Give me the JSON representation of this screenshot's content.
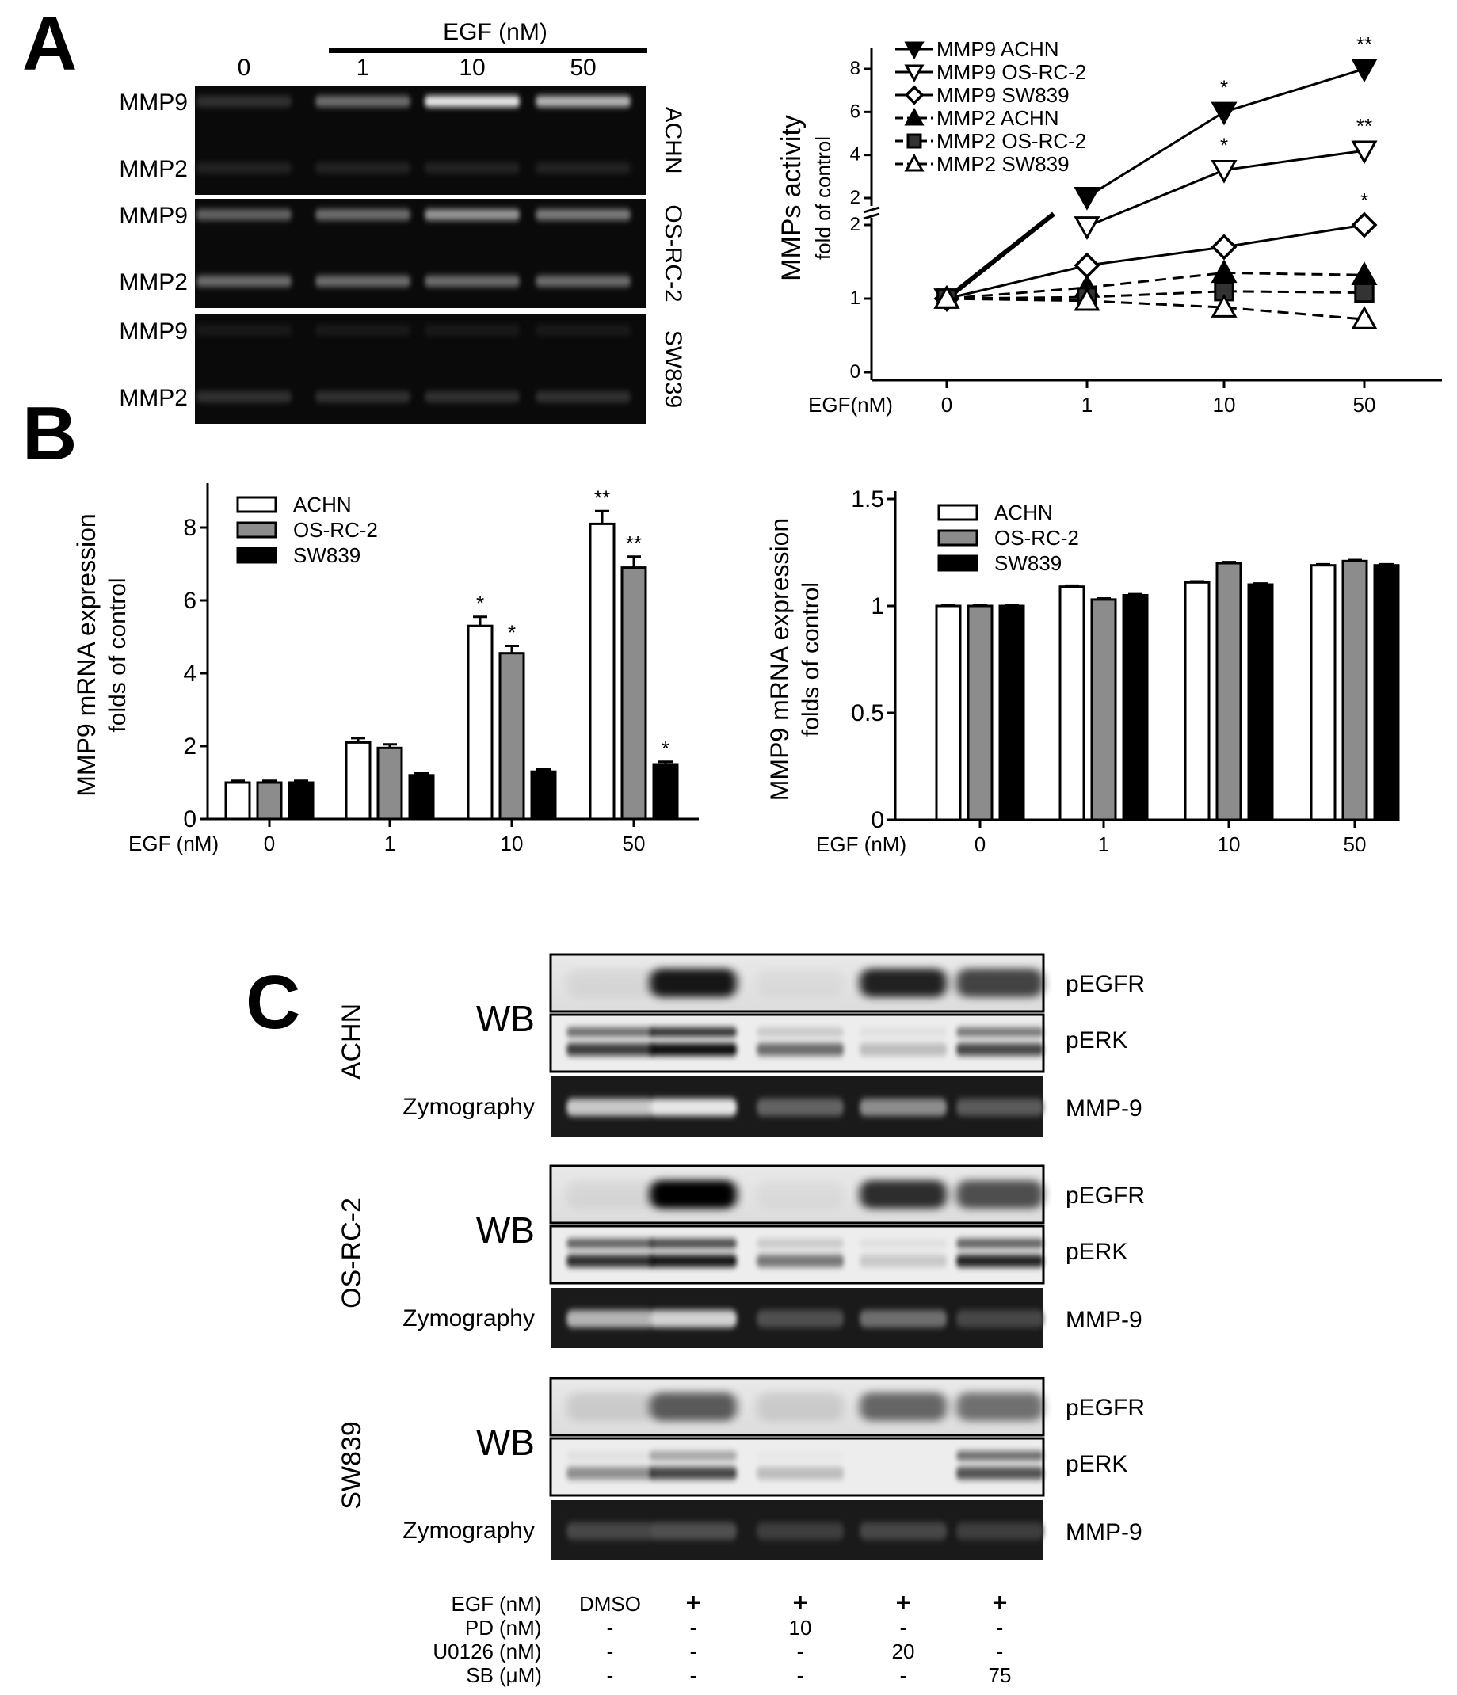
{
  "panels": {
    "A": "A",
    "B": "B",
    "C": "C"
  },
  "panelA": {
    "gel": {
      "header_label": "EGF (nM)",
      "lanes": [
        "0",
        "1",
        "10",
        "50"
      ],
      "blocks": [
        {
          "cell": "ACHN",
          "bands": [
            "MMP9",
            "MMP2"
          ]
        },
        {
          "cell": "OS-RC-2",
          "bands": [
            "MMP9",
            "MMP2"
          ]
        },
        {
          "cell": "SW839",
          "bands": [
            "MMP9",
            "MMP2"
          ]
        }
      ],
      "band_intensity": {
        "ACHN": {
          "MMP9": [
            0.25,
            0.55,
            0.95,
            0.8
          ],
          "MMP2": [
            0.15,
            0.15,
            0.15,
            0.15
          ]
        },
        "OS-RC-2": {
          "MMP9": [
            0.5,
            0.55,
            0.7,
            0.6
          ],
          "MMP2": [
            0.55,
            0.55,
            0.55,
            0.55
          ]
        },
        "SW839": {
          "MMP9": [
            0.08,
            0.08,
            0.08,
            0.08
          ],
          "MMP2": [
            0.25,
            0.25,
            0.25,
            0.25
          ]
        }
      }
    }
  },
  "chart_data": [
    {
      "type": "line",
      "ylabel": "MMPs activity",
      "ylabel2": "fold of control",
      "xlabel": "EGF(nM)",
      "x": [
        "0",
        "1",
        "10",
        "50"
      ],
      "ylim": [
        0,
        8
      ],
      "y_break": [
        2,
        2
      ],
      "yticks_lower": [
        "0",
        "1",
        "2"
      ],
      "yticks_upper": [
        "2",
        "4",
        "6",
        "8"
      ],
      "series": [
        {
          "name": "MMP9  ACHN",
          "values": [
            1,
            2.05,
            6.0,
            8.0
          ],
          "marker": "triangle-down-filled",
          "dash": "solid",
          "stars": [
            "",
            "",
            "*",
            "**"
          ]
        },
        {
          "name": "MMP9 OS-RC-2",
          "values": [
            1,
            1.98,
            3.3,
            4.2
          ],
          "marker": "triangle-down-open",
          "dash": "solid",
          "stars": [
            "",
            "",
            "*",
            "**"
          ]
        },
        {
          "name": "MMP9 SW839",
          "values": [
            1,
            1.45,
            1.7,
            2.0
          ],
          "marker": "diamond-open",
          "dash": "solid",
          "stars": [
            "",
            "",
            "",
            "*"
          ]
        },
        {
          "name": "MMP2  ACHN",
          "values": [
            1,
            1.15,
            1.35,
            1.32
          ],
          "marker": "triangle-up-filled",
          "dash": "dashed",
          "stars": [
            "",
            "",
            "",
            ""
          ]
        },
        {
          "name": "MMP2 OS-RC-2",
          "values": [
            1,
            1.02,
            1.1,
            1.08
          ],
          "marker": "square-filled",
          "dash": "dashed",
          "stars": [
            "",
            "",
            "",
            ""
          ]
        },
        {
          "name": "MMP2 SW839",
          "values": [
            1,
            0.97,
            0.88,
            0.72
          ],
          "marker": "triangle-up-open",
          "dash": "dashed",
          "stars": [
            "",
            "",
            "",
            ""
          ]
        }
      ]
    },
    {
      "type": "bar",
      "ylabel": "MMP9 mRNA expression",
      "ylabel2": "folds of control",
      "xlabel": "EGF  (nM)",
      "categories": [
        "0",
        "1",
        "10",
        "50"
      ],
      "ylim": [
        0,
        9
      ],
      "yticks": [
        "0",
        "2",
        "4",
        "6",
        "8"
      ],
      "series": [
        {
          "name": "ACHN",
          "color": "#ffffff",
          "values": [
            1.0,
            2.1,
            5.3,
            8.1
          ],
          "errors": [
            0.05,
            0.12,
            0.25,
            0.35
          ],
          "stars": [
            "",
            "",
            "*",
            "**"
          ]
        },
        {
          "name": "OS-RC-2",
          "color": "#8c8c8c",
          "values": [
            1.0,
            1.95,
            4.55,
            6.9
          ],
          "errors": [
            0.05,
            0.1,
            0.2,
            0.3
          ],
          "stars": [
            "",
            "",
            "*",
            "**"
          ]
        },
        {
          "name": "SW839",
          "color": "#000000",
          "values": [
            1.0,
            1.2,
            1.3,
            1.5
          ],
          "errors": [
            0.05,
            0.05,
            0.06,
            0.07
          ],
          "stars": [
            "",
            "",
            "",
            "*"
          ]
        }
      ]
    },
    {
      "type": "bar",
      "ylabel": "MMP9 mRNA expression",
      "ylabel2": "folds of control",
      "xlabel": "EGF  (nM)",
      "categories": [
        "0",
        "1",
        "10",
        "50"
      ],
      "ylim": [
        0,
        1.5
      ],
      "yticks": [
        "0",
        "0.5",
        "1",
        "1.5"
      ],
      "series": [
        {
          "name": "ACHN",
          "color": "#ffffff",
          "values": [
            1.0,
            1.09,
            1.11,
            1.19
          ],
          "errors": [
            0.005,
            0.005,
            0.005,
            0.005
          ],
          "stars": [
            "",
            "",
            "",
            ""
          ]
        },
        {
          "name": "OS-RC-2",
          "color": "#8c8c8c",
          "values": [
            1.0,
            1.03,
            1.2,
            1.21
          ],
          "errors": [
            0.005,
            0.005,
            0.005,
            0.005
          ],
          "stars": [
            "",
            "",
            "",
            ""
          ]
        },
        {
          "name": "SW839",
          "color": "#000000",
          "values": [
            1.0,
            1.05,
            1.1,
            1.19
          ],
          "errors": [
            0.005,
            0.005,
            0.005,
            0.005
          ],
          "stars": [
            "",
            "",
            "",
            ""
          ]
        }
      ]
    }
  ],
  "panelC": {
    "wb_label": "WB",
    "zymo_label": "Zymography",
    "row_labels": [
      "pEGFR",
      "pERK",
      "MMP-9"
    ],
    "blocks": [
      {
        "cell": "ACHN",
        "pEGFR": [
          0.05,
          0.9,
          0.03,
          0.85,
          0.7
        ],
        "pERK_upper": [
          0.55,
          0.8,
          0.15,
          0.05,
          0.5
        ],
        "pERK_lower": [
          0.75,
          0.95,
          0.55,
          0.2,
          0.7
        ],
        "MMP9": [
          0.8,
          0.95,
          0.3,
          0.5,
          0.25
        ]
      },
      {
        "cell": "OS-RC-2",
        "pEGFR": [
          0.05,
          1.0,
          0.03,
          0.8,
          0.65
        ],
        "pERK_upper": [
          0.6,
          0.7,
          0.15,
          0.05,
          0.6
        ],
        "pERK_lower": [
          0.8,
          0.9,
          0.5,
          0.15,
          0.85
        ],
        "MMP9": [
          0.7,
          0.85,
          0.2,
          0.35,
          0.15
        ]
      },
      {
        "cell": "SW839",
        "pEGFR": [
          0.1,
          0.6,
          0.1,
          0.55,
          0.5
        ],
        "pERK_upper": [
          0.05,
          0.3,
          0.02,
          0.0,
          0.55
        ],
        "pERK_lower": [
          0.4,
          0.7,
          0.2,
          0.0,
          0.65
        ],
        "MMP9": [
          0.15,
          0.2,
          0.1,
          0.15,
          0.1
        ]
      }
    ],
    "conditions": [
      {
        "label": "EGF",
        "unit": "(nM)",
        "values": [
          "DMSO",
          "+",
          "+",
          "+",
          "+"
        ]
      },
      {
        "label": "PD",
        "unit": "(nM)",
        "values": [
          "-",
          "-",
          "10",
          "-",
          "-"
        ]
      },
      {
        "label": "U0126",
        "unit": "(nM)",
        "values": [
          "-",
          "-",
          "-",
          "20",
          "-"
        ]
      },
      {
        "label": "SB",
        "unit": "(μM)",
        "values": [
          "-",
          "-",
          "-",
          "-",
          "75"
        ]
      }
    ]
  }
}
